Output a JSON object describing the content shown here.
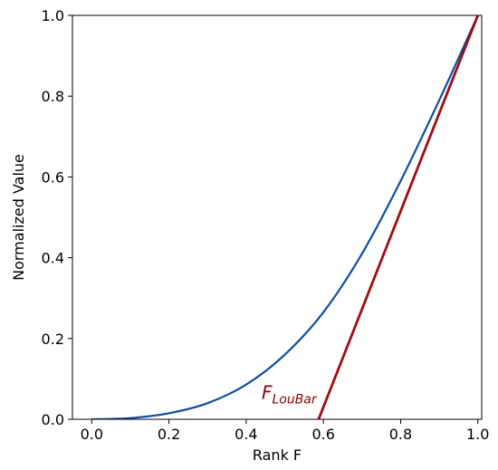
{
  "chart_data": {
    "type": "line",
    "title": "",
    "xlabel": "Rank F",
    "ylabel": "Normalized Value",
    "xlim": [
      -0.05,
      1.01
    ],
    "ylim": [
      0.0,
      1.0
    ],
    "x_ticks": [
      "0.0",
      "0.2",
      "0.4",
      "0.6",
      "0.8",
      "1.0"
    ],
    "y_ticks": [
      "0.0",
      "0.2",
      "0.4",
      "0.6",
      "0.8",
      "1.0"
    ],
    "grid": false,
    "series": [
      {
        "color": "#0b4fa0",
        "x": [
          0.0,
          0.1,
          0.2,
          0.3,
          0.4,
          0.5,
          0.6,
          0.7,
          0.8,
          0.9,
          1.0
        ],
        "y": [
          0.0,
          0.003,
          0.015,
          0.04,
          0.086,
          0.16,
          0.265,
          0.41,
          0.59,
          0.79,
          1.0
        ]
      },
      {
        "color": "#a00d12",
        "x": [
          0.5875,
          1.0
        ],
        "y": [
          0.0,
          1.0
        ]
      }
    ],
    "annotations": [
      {
        "text_main": "F",
        "text_sub": "LouBar",
        "x": 0.44,
        "y": 0.05
      }
    ]
  }
}
